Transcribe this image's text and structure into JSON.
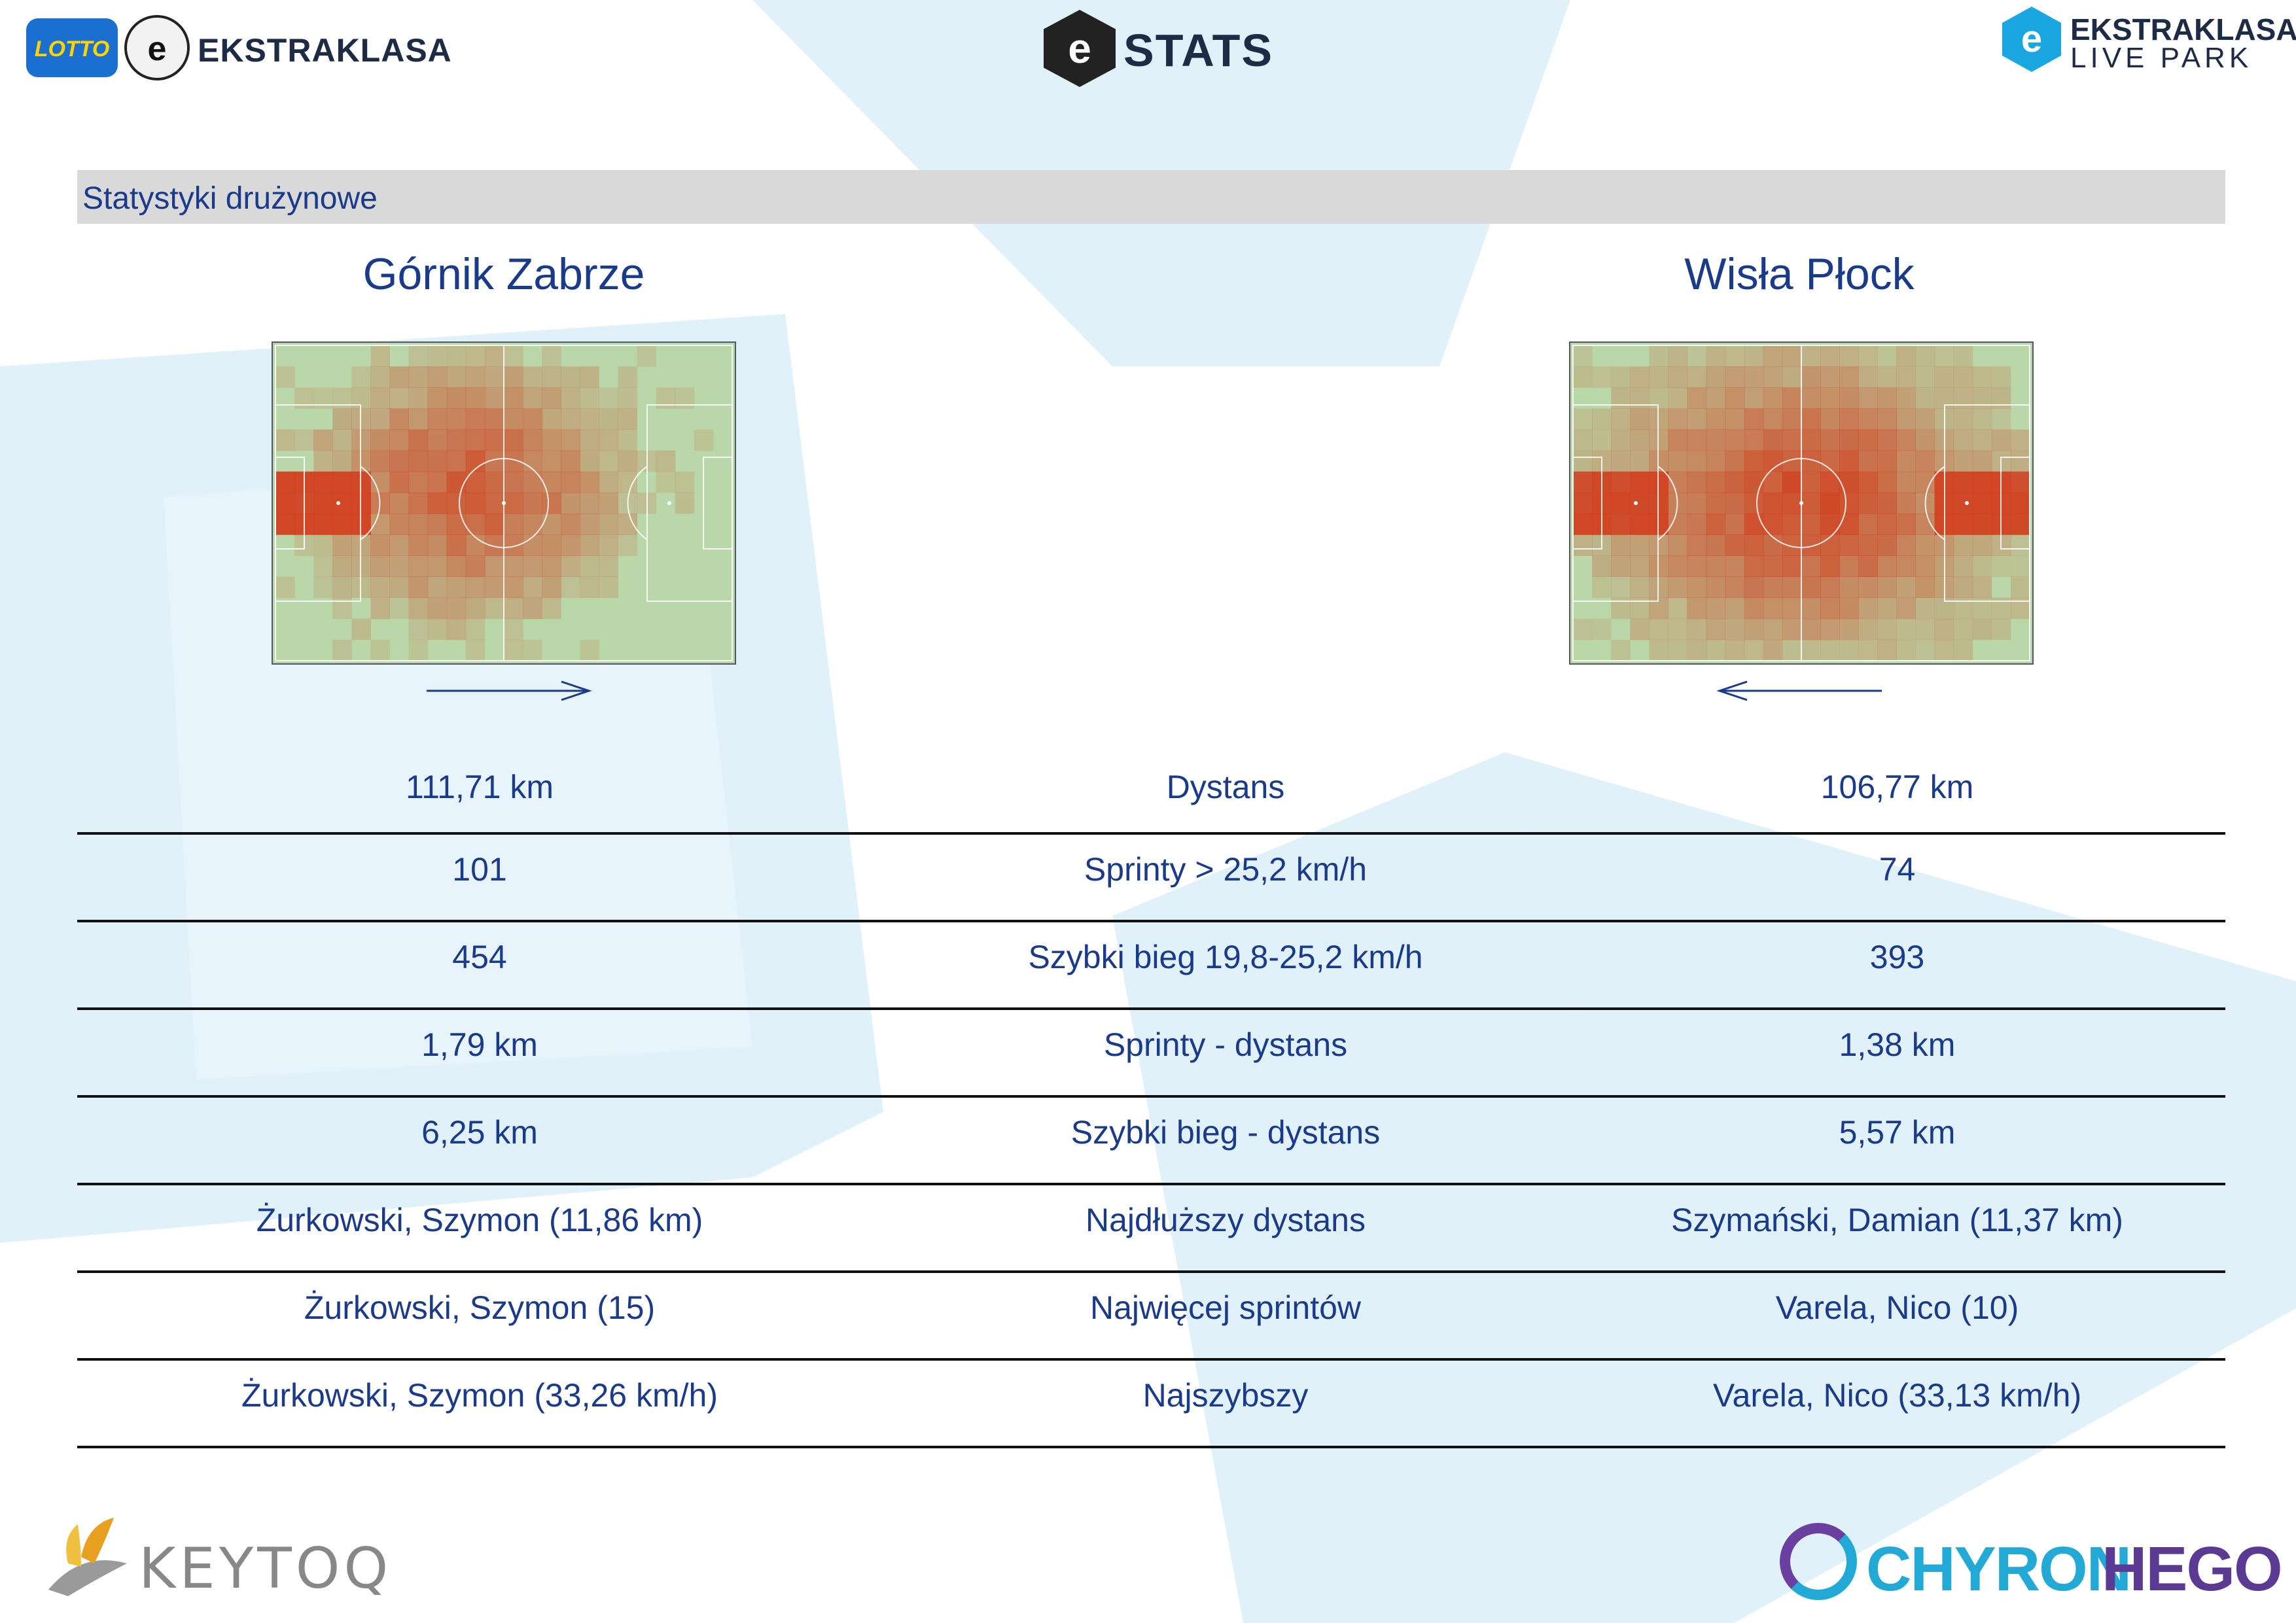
{
  "header": {
    "left_logo_badge": "LOTTO",
    "left_logo_text": "EKSTRAKLASA",
    "center_logo_text": "STATS",
    "right_logo_line1": "EKSTRAKLASA",
    "right_logo_line2": "LIVE PARK"
  },
  "section_title": "Statystyki drużynowe",
  "teams": {
    "home": {
      "name": "Górnik Zabrze",
      "direction": "right"
    },
    "away": {
      "name": "Wisła Płock",
      "direction": "left"
    }
  },
  "stats": [
    {
      "label": "Dystans",
      "home": "111,71 km",
      "away": "106,77 km"
    },
    {
      "label": "Sprinty > 25,2 km/h",
      "home": "101",
      "away": "74"
    },
    {
      "label": "Szybki bieg 19,8-25,2 km/h",
      "home": "454",
      "away": "393"
    },
    {
      "label": "Sprinty - dystans",
      "home": "1,79 km",
      "away": "1,38 km"
    },
    {
      "label": "Szybki bieg - dystans",
      "home": "6,25 km",
      "away": "5,57 km"
    },
    {
      "label": "Najdłuższy dystans",
      "home": "Żurkowski, Szymon (11,86 km)",
      "away": "Szymański, Damian (11,37 km)"
    },
    {
      "label": "Najwięcej sprintów",
      "home": "Żurkowski, Szymon (15)",
      "away": "Varela, Nico (10)"
    },
    {
      "label": "Najszybszy",
      "home": "Żurkowski, Szymon (33,26 km/h)",
      "away": "Varela, Nico (33,13 km/h)"
    }
  ],
  "footer": {
    "left_brand": "KEYTOQ",
    "right_brand_part1": "CHYRON",
    "right_brand_part2": "HEGO"
  },
  "colors": {
    "text_blue": "#1a3a8a",
    "pitch_green": "#b9d7a8",
    "heat_red": "#d23a1a",
    "bar_grey": "#d9d9d9"
  }
}
